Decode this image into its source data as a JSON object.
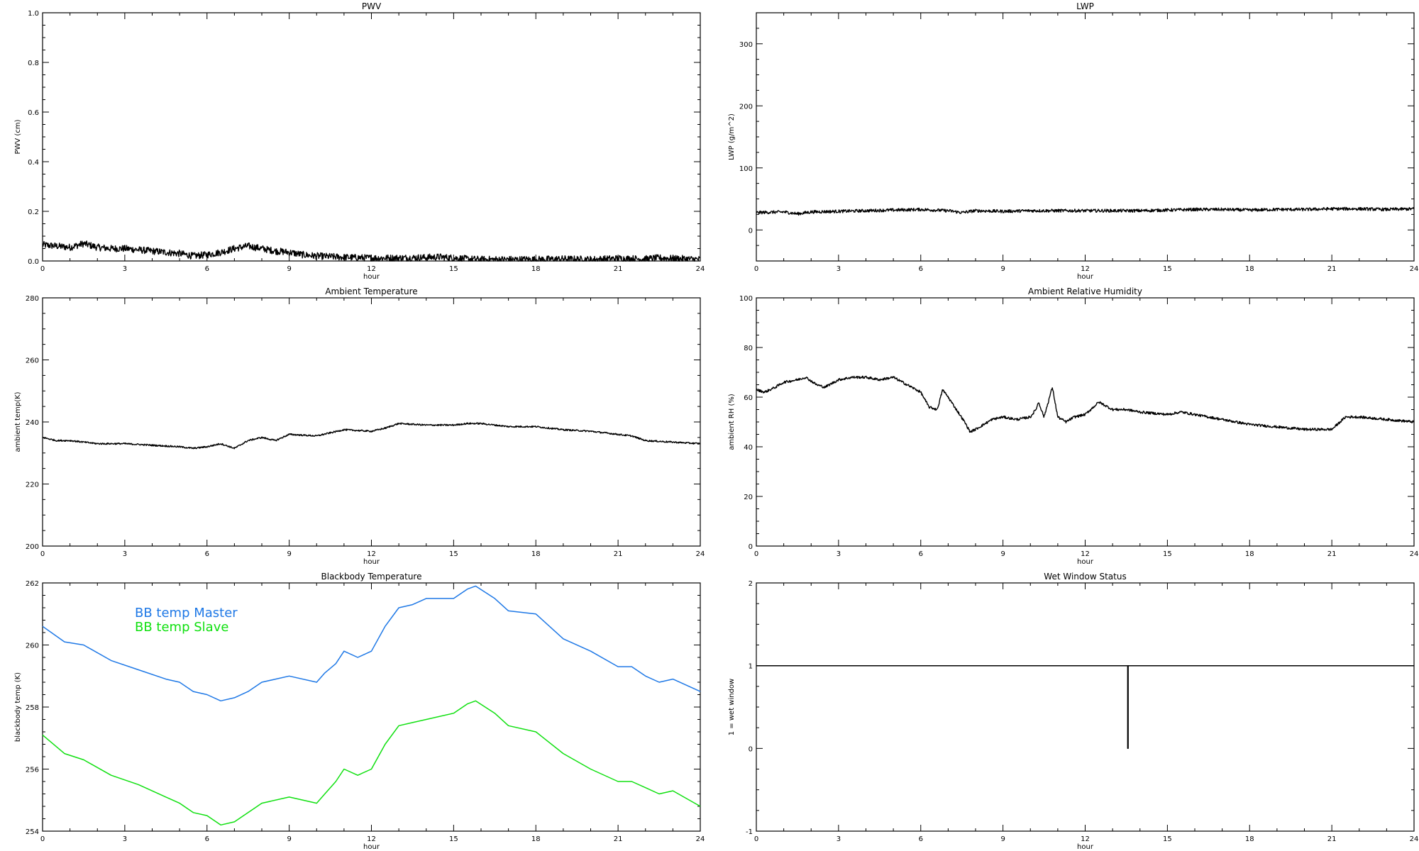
{
  "chart_data": [
    {
      "id": "pwv",
      "type": "line",
      "title": "PWV",
      "xlabel": "hour",
      "ylabel": "PWV (cm)",
      "xlim": [
        0,
        24
      ],
      "ylim": [
        0,
        1
      ],
      "xticks": [
        0,
        3,
        6,
        9,
        12,
        15,
        18,
        21,
        24
      ],
      "yticks": [
        0,
        0.2,
        0.4,
        0.6,
        0.8,
        1
      ],
      "ytick_labels": [
        "0.0",
        "0.2",
        "0.4",
        "0.6",
        "0.8",
        "1.0"
      ],
      "series": [
        {
          "color": "#000000",
          "noise": 0.014,
          "x": [
            0,
            0.5,
            1,
            1.5,
            2,
            2.5,
            3,
            3.5,
            4,
            4.5,
            5,
            5.5,
            6,
            6.5,
            7,
            7.5,
            8,
            8.5,
            9,
            9.5,
            10,
            11,
            12,
            13,
            14,
            14.5,
            15,
            15.5,
            16,
            17,
            18,
            19,
            20,
            21,
            22,
            22.5,
            23,
            24
          ],
          "y": [
            0.065,
            0.06,
            0.055,
            0.07,
            0.055,
            0.05,
            0.05,
            0.045,
            0.04,
            0.035,
            0.03,
            0.02,
            0.025,
            0.035,
            0.05,
            0.06,
            0.05,
            0.04,
            0.035,
            0.025,
            0.02,
            0.015,
            0.012,
            0.012,
            0.014,
            0.016,
            0.012,
            0.008,
            0.006,
            0.006,
            0.006,
            0.008,
            0.006,
            0.01,
            0.008,
            0.012,
            0.01,
            0.006
          ]
        }
      ]
    },
    {
      "id": "lwp",
      "type": "line",
      "title": "LWP",
      "xlabel": "hour",
      "ylabel": "LWP (g/m^2)",
      "xlim": [
        0,
        24
      ],
      "ylim": [
        -50,
        350
      ],
      "xticks": [
        0,
        3,
        6,
        9,
        12,
        15,
        18,
        21,
        24
      ],
      "yticks": [
        0,
        100,
        200,
        300
      ],
      "series": [
        {
          "color": "#000000",
          "noise": 2.5,
          "x": [
            0,
            1,
            1.5,
            2,
            3,
            4,
            5,
            6,
            7,
            7.5,
            8,
            9,
            10,
            11,
            12,
            13,
            14,
            15,
            16,
            17,
            18,
            19,
            20,
            21,
            22,
            23,
            24
          ],
          "y": [
            28,
            29,
            26,
            29,
            30,
            31,
            32,
            33,
            31,
            28,
            31,
            30,
            31,
            31,
            31,
            31,
            31,
            32,
            33,
            33,
            32,
            33,
            33,
            34,
            34,
            33,
            34
          ]
        }
      ]
    },
    {
      "id": "ambient-temp",
      "type": "line",
      "title": "Ambient Temperature",
      "xlabel": "hour",
      "ylabel": "ambient temp(K)",
      "xlim": [
        0,
        24
      ],
      "ylim": [
        200,
        280
      ],
      "xticks": [
        0,
        3,
        6,
        9,
        12,
        15,
        18,
        21,
        24
      ],
      "yticks": [
        200,
        220,
        240,
        260,
        280
      ],
      "series": [
        {
          "color": "#000000",
          "noise": 0.25,
          "x": [
            0,
            0.5,
            1,
            2,
            3,
            4,
            5,
            5.5,
            6,
            6.5,
            7,
            7.5,
            8,
            8.5,
            9,
            10,
            11,
            12,
            12.5,
            13,
            14,
            15,
            15.5,
            16,
            17,
            18,
            19,
            20,
            21,
            21.5,
            22,
            23,
            24
          ],
          "y": [
            235,
            234,
            234,
            233,
            233,
            232.5,
            232,
            231.5,
            232,
            233,
            231.5,
            234,
            235,
            234,
            236,
            235.5,
            237.5,
            237,
            238,
            239.5,
            239,
            239,
            239.5,
            239.5,
            238.5,
            238.5,
            237.5,
            237,
            236,
            235.5,
            234,
            233.5,
            233
          ]
        }
      ]
    },
    {
      "id": "ambient-rh",
      "type": "line",
      "title": "Ambient Relative Humidity",
      "xlabel": "hour",
      "ylabel": "ambient RH (%)",
      "xlim": [
        0,
        24
      ],
      "ylim": [
        0,
        100
      ],
      "xticks": [
        0,
        3,
        6,
        9,
        12,
        15,
        18,
        21,
        24
      ],
      "yticks": [
        0,
        20,
        40,
        60,
        80,
        100
      ],
      "series": [
        {
          "color": "#000000",
          "noise": 0.5,
          "x": [
            0,
            0.3,
            0.7,
            1,
            1.5,
            1.8,
            2.2,
            2.5,
            3,
            3.5,
            4,
            4.5,
            5,
            5.5,
            6,
            6.3,
            6.6,
            6.8,
            7,
            7.3,
            7.6,
            7.8,
            8,
            8.3,
            8.6,
            9,
            9.5,
            10,
            10.2,
            10.3,
            10.5,
            10.7,
            10.8,
            11,
            11.3,
            11.6,
            12,
            12.5,
            13,
            13.5,
            14,
            15,
            15.5,
            16,
            17,
            18,
            19,
            20,
            20.5,
            21,
            21.5,
            22,
            23,
            24
          ],
          "y": [
            63,
            62,
            64,
            66,
            67,
            68,
            65,
            64,
            67,
            68,
            68,
            67,
            68,
            65,
            62,
            56,
            55,
            63,
            60,
            55,
            50,
            46,
            47,
            49,
            51,
            52,
            51,
            52,
            55,
            58,
            52,
            60,
            64,
            52,
            50,
            52,
            53,
            58,
            55,
            55,
            54,
            53,
            54,
            53,
            51,
            49,
            48,
            47,
            47,
            47,
            52,
            52,
            51,
            50
          ]
        }
      ]
    },
    {
      "id": "bb-temp",
      "type": "line",
      "title": "Blackbody Temperature",
      "xlabel": "hour",
      "ylabel": "blackbody temp (K)",
      "xlim": [
        0,
        24
      ],
      "ylim": [
        254,
        262
      ],
      "xticks": [
        0,
        3,
        6,
        9,
        12,
        15,
        18,
        21,
        24
      ],
      "yticks": [
        254,
        256,
        258,
        260,
        262
      ],
      "series": [
        {
          "name": "BB temp Master",
          "color": "#1e78e6",
          "noise": 0,
          "x": [
            0,
            0.8,
            1.5,
            2.5,
            3.5,
            4.5,
            5,
            5.5,
            6,
            6.5,
            7,
            7.5,
            8,
            9,
            10,
            10.3,
            10.7,
            11,
            11.5,
            12,
            12.5,
            13,
            13.5,
            14,
            15,
            15.5,
            15.8,
            16.5,
            17,
            18,
            19,
            20,
            21,
            21.5,
            22,
            22.5,
            23,
            24
          ],
          "y": [
            260.6,
            260.1,
            260,
            259.5,
            259.2,
            258.9,
            258.8,
            258.5,
            258.4,
            258.2,
            258.3,
            258.5,
            258.8,
            259,
            258.8,
            259.1,
            259.4,
            259.8,
            259.6,
            259.8,
            260.6,
            261.2,
            261.3,
            261.5,
            261.5,
            261.8,
            261.9,
            261.5,
            261.1,
            261,
            260.2,
            259.8,
            259.3,
            259.3,
            259,
            258.8,
            258.9,
            258.5
          ]
        },
        {
          "name": "BB temp Slave",
          "color": "#10e010",
          "noise": 0,
          "x": [
            0,
            0.8,
            1.5,
            2.5,
            3.5,
            4.5,
            5,
            5.5,
            6,
            6.5,
            7,
            7.5,
            8,
            9,
            10,
            10.3,
            10.7,
            11,
            11.5,
            12,
            12.5,
            13,
            13.5,
            14,
            15,
            15.5,
            15.8,
            16.5,
            17,
            18,
            19,
            20,
            21,
            21.5,
            22,
            22.5,
            23,
            24
          ],
          "y": [
            257.1,
            256.5,
            256.3,
            255.8,
            255.5,
            255.1,
            254.9,
            254.6,
            254.5,
            254.2,
            254.3,
            254.6,
            254.9,
            255.1,
            254.9,
            255.2,
            255.6,
            256,
            255.8,
            256,
            256.8,
            257.4,
            257.5,
            257.6,
            257.8,
            258.1,
            258.2,
            257.8,
            257.4,
            257.2,
            256.5,
            256,
            255.6,
            255.6,
            255.4,
            255.2,
            255.3,
            254.8
          ]
        }
      ]
    },
    {
      "id": "wet-window",
      "type": "line",
      "title": "Wet Window Status",
      "xlabel": "hour",
      "ylabel": "1 = wet window",
      "xlim": [
        0,
        24
      ],
      "ylim": [
        -1,
        2
      ],
      "xticks": [
        0,
        3,
        6,
        9,
        12,
        15,
        18,
        21,
        24
      ],
      "yticks": [
        -1,
        0,
        1,
        2
      ],
      "series": [
        {
          "color": "#000000",
          "noise": 0,
          "x": [
            0,
            13.55,
            13.55,
            13.57,
            13.57,
            24
          ],
          "y": [
            1,
            1,
            0,
            0,
            1,
            1
          ]
        }
      ]
    }
  ]
}
